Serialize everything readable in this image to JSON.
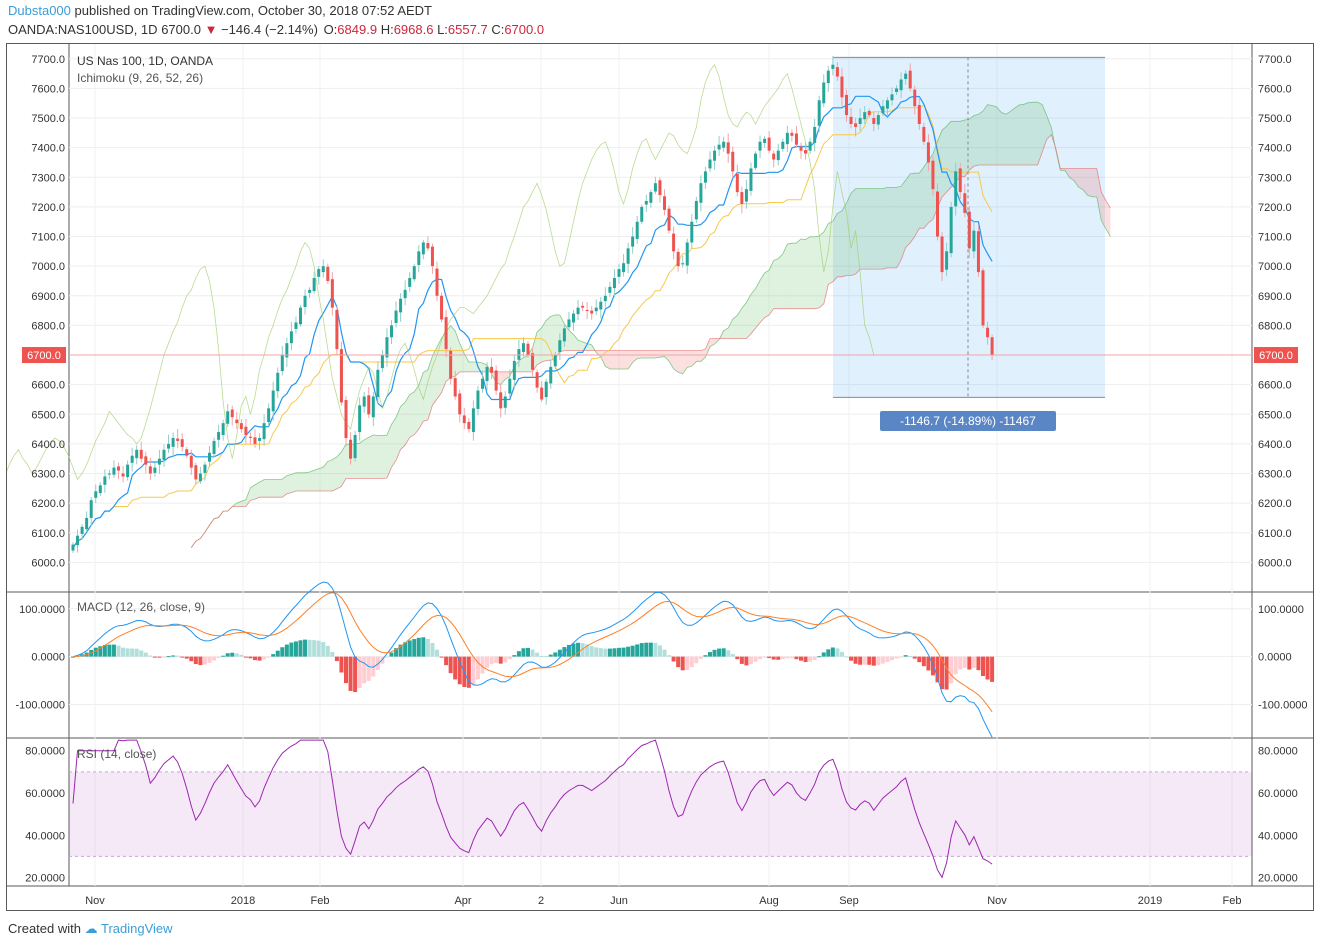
{
  "header": {
    "author": "Dubsta000",
    "published": "published on TradingView.com, October 30, 2018 07:52 AEDT",
    "symbol": "OANDA:NAS100USD, 1D",
    "last": "6700.0",
    "change": "−146.4 (−2.14%)",
    "o_label": "O:",
    "o_val": "6849.9",
    "h_label": "H:",
    "h_val": "6968.6",
    "l_label": "L:",
    "l_val": "6557.7",
    "c_label": "C:",
    "c_val": "6700.0"
  },
  "footer": {
    "created_with": "Created with",
    "brand": "TradingView"
  },
  "chart_data": {
    "type": "candlestick",
    "title": "US Nas 100, 1D, OANDA",
    "indicator_label": "Ichimoku (9, 26, 52, 26)",
    "price_axis": {
      "min": 5900,
      "max": 7750,
      "ticks": [
        "7700.0",
        "7600.0",
        "7500.0",
        "7400.0",
        "7300.0",
        "7200.0",
        "7100.0",
        "7000.0",
        "6900.0",
        "6800.0",
        "6700.0",
        "6600.0",
        "6500.0",
        "6400.0",
        "6300.0",
        "6200.0",
        "6100.0",
        "6000.0"
      ]
    },
    "last_price_label": "6700.0",
    "x_ticks": [
      "Nov",
      "2018",
      "Feb",
      "Apr",
      "2",
      "Jun",
      "Aug",
      "Sep",
      "Nov",
      "2019",
      "Feb"
    ],
    "measure": {
      "label": "-1146.7 (-14.89%) -11467",
      "from_price": 7705,
      "to_price": 6557
    },
    "close_series": [
      6060,
      6090,
      6120,
      6150,
      6210,
      6240,
      6260,
      6290,
      6300,
      6320,
      6310,
      6290,
      6330,
      6360,
      6380,
      6350,
      6330,
      6300,
      6320,
      6350,
      6380,
      6400,
      6420,
      6410,
      6390,
      6360,
      6320,
      6280,
      6300,
      6330,
      6370,
      6410,
      6440,
      6470,
      6510,
      6490,
      6470,
      6450,
      6430,
      6420,
      6400,
      6420,
      6470,
      6520,
      6580,
      6640,
      6700,
      6740,
      6780,
      6810,
      6860,
      6900,
      6920,
      6960,
      6990,
      7000,
      6950,
      6860,
      6720,
      6540,
      6420,
      6350,
      6430,
      6530,
      6560,
      6500,
      6560,
      6650,
      6700,
      6760,
      6800,
      6850,
      6890,
      6920,
      6960,
      7000,
      7050,
      7080,
      7060,
      7000,
      6900,
      6820,
      6720,
      6620,
      6560,
      6500,
      6470,
      6450,
      6520,
      6580,
      6620,
      6660,
      6640,
      6580,
      6520,
      6560,
      6620,
      6680,
      6720,
      6740,
      6700,
      6650,
      6590,
      6550,
      6610,
      6660,
      6700,
      6750,
      6790,
      6820,
      6840,
      6860,
      6860,
      6850,
      6840,
      6860,
      6880,
      6900,
      6930,
      6960,
      6990,
      7010,
      7060,
      7100,
      7150,
      7200,
      7220,
      7250,
      7280,
      7240,
      7190,
      7120,
      7050,
      7000,
      7010,
      7080,
      7150,
      7220,
      7280,
      7320,
      7360,
      7390,
      7410,
      7420,
      7380,
      7320,
      7250,
      7210,
      7260,
      7330,
      7380,
      7420,
      7430,
      7390,
      7360,
      7390,
      7420,
      7450,
      7440,
      7410,
      7390,
      7380,
      7420,
      7470,
      7560,
      7620,
      7660,
      7680,
      7640,
      7570,
      7510,
      7480,
      7470,
      7500,
      7520,
      7510,
      7480,
      7510,
      7540,
      7560,
      7580,
      7600,
      7630,
      7650,
      7600,
      7540,
      7480,
      7420,
      7350,
      7260,
      7100,
      6980,
      7050,
      7200,
      7320,
      7250,
      7180,
      7060,
      7120,
      6980,
      6800,
      6760,
      6700
    ],
    "macd_panel": {
      "title": "MACD (12, 26, close, 9)",
      "ticks": [
        "100.0000",
        "0.0000",
        "-100.0000"
      ],
      "min": -170,
      "max": 135
    },
    "rsi_panel": {
      "title": "RSI (14, close)",
      "ticks": [
        "80.0000",
        "60.0000",
        "40.0000",
        "20.0000"
      ],
      "min": 16,
      "max": 86,
      "band": [
        30,
        70
      ]
    }
  }
}
